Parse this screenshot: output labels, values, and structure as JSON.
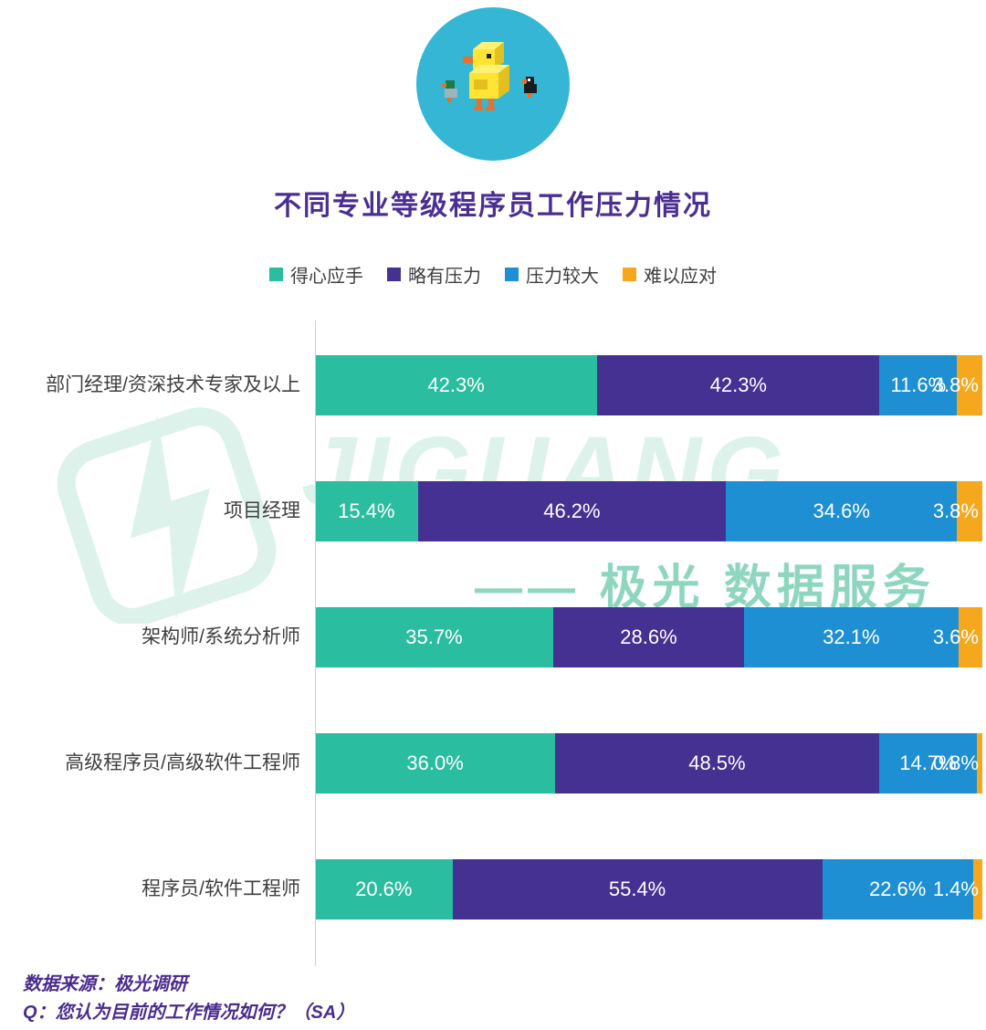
{
  "logo": {
    "icon": "voxel-duck"
  },
  "title": "不同专业等级程序员工作压力情况",
  "watermark": {
    "big": "JIGUANG",
    "small": "—— 极光 数据服务"
  },
  "chart_data": {
    "type": "bar",
    "orientation": "horizontal",
    "stacked": true,
    "unit": "%",
    "title": "不同专业等级程序员工作压力情况",
    "legend_position": "top",
    "grid": false,
    "xlim": [
      0,
      100
    ],
    "categories": [
      "部门经理/资深技术专家及以上",
      "项目经理",
      "架构师/系统分析师",
      "高级程序员/高级软件工程师",
      "程序员/软件工程师"
    ],
    "series": [
      {
        "name": "得心应手",
        "color": "#2ABDA0",
        "values": [
          42.3,
          15.4,
          35.7,
          36.0,
          20.6
        ]
      },
      {
        "name": "略有压力",
        "color": "#453191",
        "values": [
          42.3,
          46.2,
          28.6,
          48.5,
          55.4
        ]
      },
      {
        "name": "压力较大",
        "color": "#1E8FD2",
        "values": [
          11.6,
          34.6,
          32.1,
          14.7,
          22.6
        ]
      },
      {
        "name": "难以应对",
        "color": "#F5A81E",
        "values": [
          3.8,
          3.8,
          3.6,
          0.8,
          1.4
        ]
      }
    ]
  },
  "footer": {
    "source": "数据来源：极光调研",
    "question": "Q：您认为目前的工作情况如何？（SA）"
  },
  "colors": {
    "title": "#4B2E92",
    "watermark_light": "#DCF2EA",
    "watermark_dark": "#8FD6BF",
    "axis": "#CFCFCF"
  }
}
